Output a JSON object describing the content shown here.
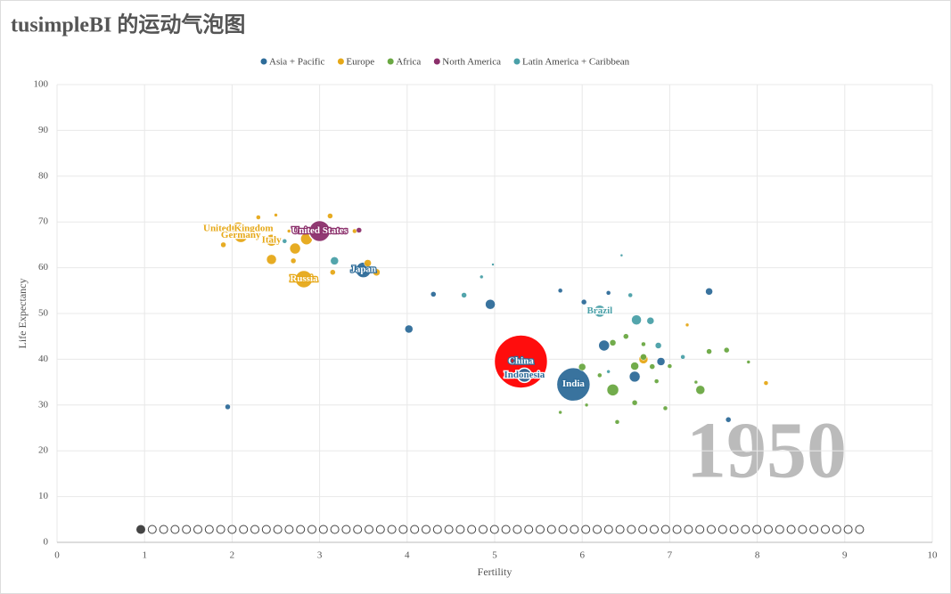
{
  "chart_data": {
    "type": "bubble",
    "title": "tusimpleBI 的运动气泡图",
    "annotation": "1950",
    "xlabel": "Fertility",
    "ylabel": "Life Expectancy",
    "xlim": [
      0,
      10
    ],
    "xticks": [
      0,
      1,
      2,
      3,
      4,
      5,
      6,
      7,
      8,
      9,
      10
    ],
    "ylim": [
      0,
      100
    ],
    "yticks": [
      0,
      10,
      20,
      30,
      40,
      50,
      60,
      70,
      80,
      90,
      100
    ],
    "grid": true,
    "legend": "top",
    "highlight_color": "#ff0000",
    "series": [
      {
        "name": "Asia + Pacific",
        "color": "#2e6c99",
        "highlight_index": 0,
        "x": [
          5.3,
          5.9,
          5.34,
          3.5,
          1.95,
          4.02,
          4.95,
          6.25,
          6.6,
          6.9,
          7.45,
          7.67,
          4.3,
          6.1,
          6.3,
          5.75,
          6.02
        ],
        "values": [
          39.5,
          34.5,
          36.5,
          59.5,
          29.6,
          46.6,
          52,
          43,
          36.2,
          39.5,
          54.8,
          26.8,
          54.2,
          51,
          54.5,
          55,
          52.5
        ],
        "sizes": [
          30,
          19,
          8,
          9,
          3,
          4.5,
          5.5,
          6.5,
          6,
          4.5,
          4,
          3,
          3,
          3,
          2.5,
          2.5,
          3
        ],
        "labels": [
          "China",
          "India",
          "Indonesia",
          "Japan",
          null,
          null,
          null,
          null,
          null,
          null,
          null,
          null,
          null,
          null,
          null,
          null,
          null
        ]
      },
      {
        "name": "Europe",
        "color": "#e6a817",
        "x": [
          2.07,
          2.1,
          2.45,
          2.82,
          2.85,
          2.72,
          2.45,
          3.55,
          1.9,
          2.3,
          2.5,
          3.12,
          2.65,
          2.7,
          3.4,
          3.65,
          6.7,
          8.1,
          7.2,
          3.15
        ],
        "values": [
          68.5,
          67,
          66,
          57.5,
          66.3,
          64.2,
          61.8,
          61,
          65,
          71,
          71.5,
          71.3,
          68,
          61.5,
          68,
          59,
          40,
          34.8,
          47.5,
          59
        ],
        "sizes": [
          8,
          8,
          7,
          10,
          7,
          6.5,
          5.5,
          4,
          3,
          2.5,
          2,
          3,
          2,
          3,
          2.5,
          4,
          5,
          2.5,
          2,
          3
        ],
        "labels": [
          "United Kingdom",
          "Germany",
          "Italy",
          "Russia",
          null,
          null,
          null,
          null,
          null,
          null,
          null,
          null,
          null,
          null,
          null,
          null,
          null,
          null,
          null,
          null
        ]
      },
      {
        "name": "Africa",
        "color": "#6aa842",
        "x": [
          6.35,
          6.6,
          6.7,
          6.35,
          6.5,
          6.0,
          7.35,
          7.65,
          6.95,
          6.4,
          6.6,
          6.7,
          7.0,
          6.2,
          6.05,
          7.9,
          7.3,
          7.45,
          5.75,
          6.8,
          6.85
        ],
        "values": [
          33.3,
          38.5,
          40.5,
          43.6,
          45,
          38.3,
          33.3,
          42,
          29.3,
          26.3,
          30.5,
          43.3,
          38.5,
          36.5,
          30,
          39.4,
          35,
          41.7,
          28.4,
          38.4,
          35.2
        ],
        "sizes": [
          7,
          4.5,
          3.5,
          3.5,
          3,
          4,
          5,
          3,
          2.5,
          2.5,
          3,
          2.5,
          2.5,
          2.5,
          2,
          2,
          2,
          3,
          2,
          3,
          2.5
        ],
        "labels": [
          null,
          null,
          null,
          null,
          null,
          null,
          null,
          null,
          null,
          null,
          null,
          null,
          null,
          null,
          null,
          null,
          null,
          null,
          null,
          null,
          null
        ]
      },
      {
        "name": "North America",
        "color": "#8b2f6b",
        "x": [
          3.0,
          3.45
        ],
        "values": [
          68,
          68.2
        ],
        "sizes": [
          12,
          3
        ],
        "labels": [
          "United States",
          null
        ]
      },
      {
        "name": "Latin America + Caribbean",
        "color": "#4aa0a8",
        "x": [
          6.2,
          6.62,
          6.78,
          3.17,
          2.6,
          4.65,
          4.85,
          6.87,
          6.3,
          7.15,
          6.45,
          6.55,
          4.98
        ],
        "values": [
          50.5,
          48.6,
          48.4,
          61.5,
          65.8,
          54,
          58,
          43,
          37.3,
          40.5,
          62.7,
          54,
          60.7
        ],
        "sizes": [
          7,
          5.5,
          4,
          4.5,
          2.5,
          3,
          2,
          3.5,
          2,
          2.5,
          1.5,
          2.5,
          1.5
        ],
        "labels": [
          "Brazil",
          null,
          null,
          null,
          null,
          null,
          null,
          null,
          null,
          null,
          null,
          null,
          null
        ]
      }
    ]
  }
}
